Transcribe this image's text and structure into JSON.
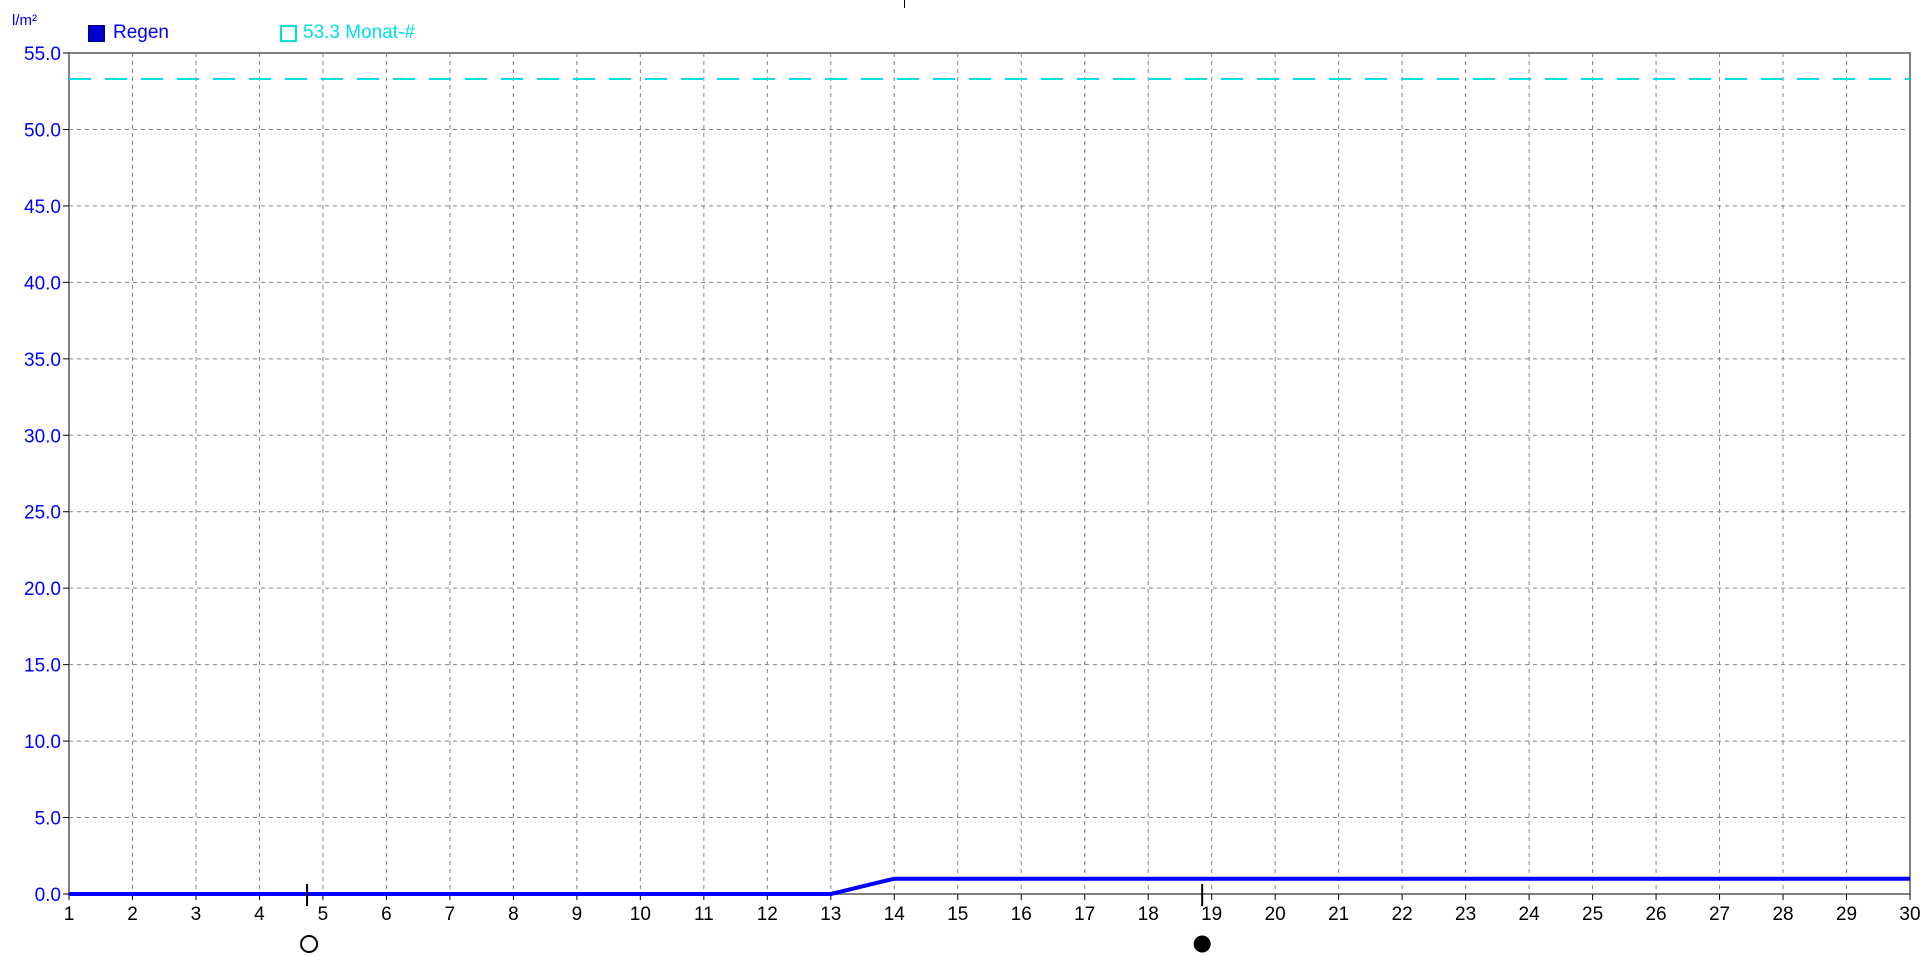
{
  "unit_label": "l/m²",
  "legend": {
    "regen_label": "Regen",
    "monat_label": "53.3 Monat-#"
  },
  "colors": {
    "regen": "#0000ff",
    "monat": "#00e0e0",
    "axis_text": "#0000ff",
    "grid": "#808080"
  },
  "icons": {
    "full_moon": "moon-empty-circle-icon",
    "new_moon": "moon-filled-circle-icon"
  },
  "moon_phases": [
    {
      "day": 4.75,
      "type": "empty"
    },
    {
      "day": 18.85,
      "type": "filled"
    }
  ],
  "chart_data": {
    "type": "line",
    "title": "",
    "xlabel": "",
    "ylabel": "l/m²",
    "xlim": [
      1,
      30
    ],
    "ylim": [
      0,
      55
    ],
    "x_ticks": [
      "1",
      "2",
      "3",
      "4",
      "5",
      "6",
      "7",
      "8",
      "9",
      "10",
      "11",
      "12",
      "13",
      "14",
      "15",
      "16",
      "17",
      "18",
      "19",
      "20",
      "21",
      "22",
      "23",
      "24",
      "25",
      "26",
      "27",
      "28",
      "29",
      "30"
    ],
    "y_ticks": [
      "0.0",
      "5.0",
      "10.0",
      "15.0",
      "20.0",
      "25.0",
      "30.0",
      "35.0",
      "40.0",
      "45.0",
      "50.0",
      "55.0"
    ],
    "grid": true,
    "legend_position": "top-left",
    "series": [
      {
        "name": "Regen",
        "color": "#0000ff",
        "x": [
          1,
          13,
          13.5,
          14,
          30
        ],
        "values": [
          0,
          0,
          0.5,
          1.0,
          1.0
        ]
      }
    ],
    "reference_lines": [
      {
        "name": "53.3 Monat-#",
        "value": 53.3,
        "color": "#00e0e0",
        "style": "dashed"
      }
    ]
  }
}
